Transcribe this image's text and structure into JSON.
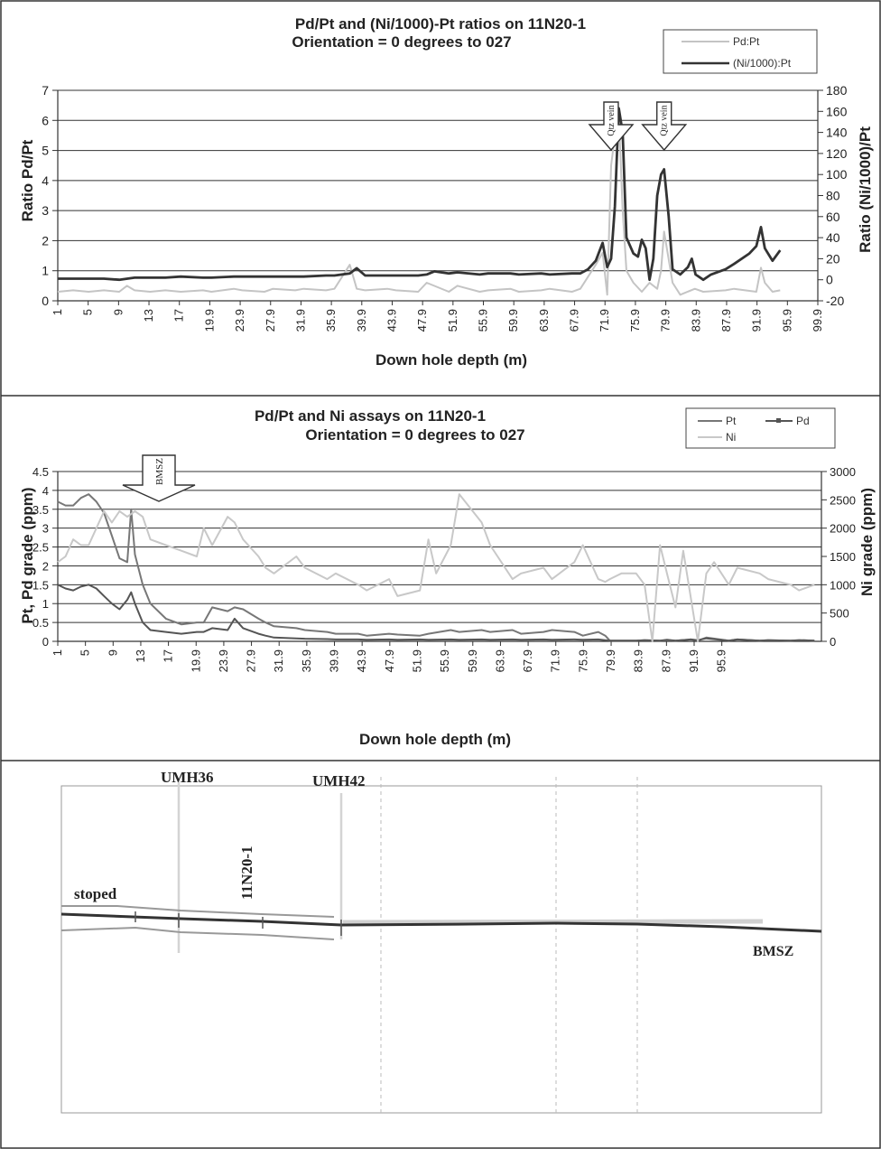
{
  "panel1": {
    "chart_data": {
      "type": "line",
      "title": "Pd/Pt and (Ni/1000)-Pt ratios on 11N20-1",
      "subtitle": "Orientation = 0 degrees to 027",
      "xlabel": "Down hole depth (m)",
      "ylabel": "Ratio Pd/Pt",
      "y2label": "Ratio (Ni/1000)/Pt",
      "xlim": [
        1,
        99.9
      ],
      "ylim": [
        0,
        7
      ],
      "y2lim": [
        -20,
        180
      ],
      "yticks": [
        "0",
        "1",
        "2",
        "3",
        "4",
        "5",
        "6",
        "7"
      ],
      "y2ticks": [
        "-20",
        "0",
        "20",
        "40",
        "60",
        "80",
        "100",
        "120",
        "140",
        "160",
        "180"
      ],
      "xticks": [
        "1",
        "5",
        "9",
        "13",
        "17",
        "19.9",
        "23.9",
        "27.9",
        "31.9",
        "35.9",
        "39.9",
        "43.9",
        "47.9",
        "51.9",
        "55.9",
        "59.9",
        "63.9",
        "67.9",
        "71.9",
        "75.9",
        "79.9",
        "83.9",
        "87.9",
        "91.9",
        "95.9",
        "99.9"
      ],
      "grid": true,
      "legend_position": "top-right",
      "series": [
        {
          "name": "Pd:Pt",
          "axis": "left",
          "color": "#c4c4c4",
          "x": [
            1,
            3,
            5,
            7,
            9,
            10,
            11,
            13,
            15,
            17,
            19.9,
            21,
            23.9,
            25,
            27.9,
            29,
            31.9,
            33,
            35.9,
            37,
            39,
            39.9,
            41,
            43.9,
            45,
            47.9,
            49,
            51.9,
            53,
            55.9,
            57,
            59.9,
            61,
            63.9,
            65,
            67.9,
            69,
            70,
            71,
            71.9,
            72.5,
            73,
            73.5,
            74,
            74.5,
            75,
            75.9,
            77,
            78,
            79,
            79.5,
            79.9,
            81,
            82,
            83.9,
            85,
            87.9,
            89,
            91.9,
            92.5,
            93,
            94,
            95
          ],
          "y": [
            0.3,
            0.35,
            0.3,
            0.35,
            0.3,
            0.5,
            0.35,
            0.3,
            0.35,
            0.3,
            0.35,
            0.3,
            0.4,
            0.35,
            0.3,
            0.4,
            0.35,
            0.4,
            0.35,
            0.4,
            1.2,
            0.4,
            0.35,
            0.4,
            0.35,
            0.3,
            0.6,
            0.3,
            0.5,
            0.3,
            0.35,
            0.4,
            0.3,
            0.35,
            0.4,
            0.3,
            0.4,
            0.8,
            1.2,
            1.6,
            0.2,
            4.5,
            5.5,
            6.2,
            3.0,
            1.0,
            0.6,
            0.3,
            0.6,
            0.4,
            1.0,
            2.3,
            0.6,
            0.2,
            0.4,
            0.3,
            0.35,
            0.4,
            0.3,
            1.1,
            0.6,
            0.3,
            0.35
          ]
        },
        {
          "name": "(Ni/1000):Pt",
          "axis": "right",
          "color": "#333333",
          "x": [
            1,
            3,
            5,
            7,
            9,
            11,
            13,
            15,
            17,
            19.9,
            21,
            23.9,
            25,
            27.9,
            29,
            31.9,
            33,
            35.9,
            37,
            39,
            39.9,
            41,
            43.9,
            45,
            47.9,
            49,
            50,
            51.9,
            53,
            55.9,
            57,
            59.9,
            61,
            63.9,
            65,
            67.9,
            69,
            70,
            71,
            71.9,
            72.5,
            73,
            73.5,
            74,
            74.5,
            75,
            75.9,
            76.5,
            77,
            77.5,
            78,
            78.5,
            79,
            79.5,
            79.9,
            80.5,
            81,
            82,
            83,
            83.5,
            84,
            85,
            86,
            87.9,
            89,
            91,
            91.9,
            92.5,
            93,
            94,
            95
          ],
          "y": [
            1,
            1,
            1,
            1,
            0,
            2,
            2,
            2,
            3,
            2,
            2,
            3,
            3,
            3,
            3,
            3,
            3,
            4,
            4,
            6,
            11,
            4,
            4,
            4,
            4,
            5,
            8,
            6,
            7,
            5,
            6,
            6,
            5,
            6,
            5,
            6,
            6,
            10,
            18,
            35,
            12,
            20,
            70,
            163,
            140,
            40,
            25,
            22,
            38,
            30,
            0,
            20,
            80,
            100,
            105,
            60,
            10,
            5,
            12,
            20,
            5,
            0,
            5,
            10,
            15,
            25,
            32,
            50,
            30,
            18,
            28
          ]
        }
      ],
      "annotations": [
        "Qtz vein",
        "Qtz vein"
      ]
    }
  },
  "panel2": {
    "chart_data": {
      "type": "line",
      "title": "Pd/Pt and Ni assays on 11N20-1",
      "subtitle": "Orientation = 0 degrees to 027",
      "xlabel": "Down hole depth (m)",
      "ylabel": "Pt, Pd grade (ppm)",
      "y2label": "Ni grade (ppm)",
      "xlim": [
        1,
        99.9
      ],
      "ylim": [
        0,
        4.5
      ],
      "y2lim": [
        0,
        3000
      ],
      "yticks": [
        "0",
        "0.5",
        "1",
        "1.5",
        "2",
        "2.5",
        "3",
        "3.5",
        "4",
        "4.5"
      ],
      "y2ticks": [
        "0",
        "500",
        "1000",
        "1500",
        "2000",
        "2500",
        "3000"
      ],
      "xticks": [
        "1",
        "5",
        "9",
        "13",
        "17",
        "19.9",
        "23.9",
        "27.9",
        "31.9",
        "35.9",
        "39.9",
        "43.9",
        "47.9",
        "51.9",
        "55.9",
        "59.9",
        "63.9",
        "67.9",
        "71.9",
        "75.9",
        "79.9",
        "83.9",
        "87.9",
        "91.9",
        "95.9"
      ],
      "grid": true,
      "legend_position": "top-right",
      "series": [
        {
          "name": "Pt",
          "axis": "left",
          "color": "#777777",
          "x": [
            1,
            2,
            3,
            4,
            5,
            6,
            7,
            8,
            9,
            10,
            10.5,
            11,
            12,
            13,
            15,
            17,
            19,
            19.9,
            21,
            23,
            23.9,
            25,
            27,
            27.9,
            29,
            31.9,
            33,
            35.9,
            37,
            39.9,
            41,
            43.9,
            45,
            47.9,
            49,
            51.9,
            53,
            55.9,
            57,
            59.9,
            61,
            63.9,
            65,
            67.9,
            69,
            71,
            71.9,
            72.5,
            73,
            75,
            75.9,
            77,
            79,
            79.9,
            81,
            83,
            83.9,
            85,
            87.9,
            89,
            91.9,
            93,
            95.9,
            97,
            99
          ],
          "y": [
            3.7,
            3.6,
            3.6,
            3.8,
            3.9,
            3.7,
            3.4,
            2.8,
            2.2,
            2.1,
            3.5,
            2.3,
            1.5,
            1.0,
            0.6,
            0.45,
            0.5,
            0.5,
            0.9,
            0.8,
            0.9,
            0.85,
            0.6,
            0.5,
            0.4,
            0.35,
            0.3,
            0.25,
            0.2,
            0.2,
            0.15,
            0.2,
            0.18,
            0.15,
            0.2,
            0.3,
            0.25,
            0.3,
            0.25,
            0.3,
            0.2,
            0.25,
            0.3,
            0.25,
            0.15,
            0.25,
            0.15,
            0.02,
            0.02,
            0.02,
            0.02,
            0.03,
            0.02,
            0.03,
            0.02,
            0.05,
            0.02,
            0.1,
            0.02,
            0.05,
            0.02,
            0.03,
            0.02,
            0.03,
            0.02
          ]
        },
        {
          "name": "Pd",
          "axis": "left",
          "color": "#555555",
          "x": [
            1,
            2,
            3,
            4,
            5,
            6,
            7,
            8,
            9,
            10,
            10.5,
            11,
            12,
            13,
            15,
            17,
            19,
            19.9,
            21,
            23,
            23.9,
            25,
            27,
            27.9,
            29,
            31.9,
            33,
            35.9,
            37,
            39.9,
            41,
            43.9,
            45,
            47.9,
            49,
            51.9,
            53,
            55.9,
            57,
            59.9,
            61,
            63.9,
            65,
            67.9,
            69,
            71,
            71.9,
            72.5,
            73,
            75,
            75.9,
            77,
            79,
            79.9,
            81,
            83,
            83.9,
            85,
            87.9,
            89,
            91.9,
            93,
            95.9,
            97,
            99
          ],
          "y": [
            1.5,
            1.4,
            1.35,
            1.45,
            1.5,
            1.4,
            1.2,
            1.0,
            0.85,
            1.1,
            1.3,
            1.0,
            0.5,
            0.3,
            0.25,
            0.2,
            0.25,
            0.25,
            0.35,
            0.3,
            0.6,
            0.35,
            0.2,
            0.15,
            0.1,
            0.08,
            0.07,
            0.06,
            0.05,
            0.05,
            0.04,
            0.05,
            0.04,
            0.05,
            0.04,
            0.05,
            0.04,
            0.05,
            0.04,
            0.05,
            0.04,
            0.05,
            0.04,
            0.05,
            0.04,
            0.05,
            0.03,
            0.02,
            0.02,
            0.02,
            0.02,
            0.03,
            0.02,
            0.04,
            0.02,
            0.05,
            0.03,
            0.08,
            0.02,
            0.05,
            0.02,
            0.03,
            0.02,
            0.03,
            0.02
          ]
        },
        {
          "name": "Ni",
          "axis": "right",
          "color": "#c8c8c8",
          "x": [
            1,
            2,
            3,
            4,
            5,
            6,
            7,
            8,
            9,
            10,
            11,
            12,
            13,
            15,
            17,
            19,
            19.9,
            21,
            23,
            23.9,
            25,
            27,
            27.9,
            29,
            31.9,
            33,
            35.9,
            37,
            39.9,
            41,
            43.9,
            45,
            47.9,
            49,
            50,
            51.9,
            53,
            55.9,
            57,
            59.9,
            61,
            63.9,
            65,
            67.9,
            69,
            71,
            71.9,
            72.5,
            74,
            75.9,
            77,
            78,
            79,
            79.9,
            81,
            82,
            83.9,
            85,
            86,
            87.9,
            89,
            91.9,
            93,
            95.9,
            97,
            99
          ],
          "y": [
            1400,
            1500,
            1800,
            1700,
            1700,
            2000,
            2300,
            2100,
            2300,
            2200,
            2300,
            2200,
            1800,
            1700,
            1600,
            1500,
            2000,
            1700,
            2200,
            2100,
            1800,
            1500,
            1300,
            1200,
            1500,
            1300,
            1100,
            1200,
            1000,
            900,
            1100,
            800,
            900,
            1800,
            1200,
            1700,
            2600,
            2100,
            1700,
            1100,
            1200,
            1300,
            1100,
            1400,
            1700,
            1100,
            1050,
            1100,
            1200,
            1200,
            1000,
            0,
            1700,
            1200,
            600,
            1600,
            0,
            1200,
            1400,
            1000,
            1300,
            1200,
            1100,
            1000,
            900,
            1000
          ]
        }
      ]
    },
    "annotation": "BMSZ"
  },
  "panel3": {
    "labels": {
      "umh36": "UMH36",
      "umh42": "UMH42",
      "hole": "11N20-1",
      "stoped": "stoped",
      "bmsz": "BMSZ"
    }
  }
}
